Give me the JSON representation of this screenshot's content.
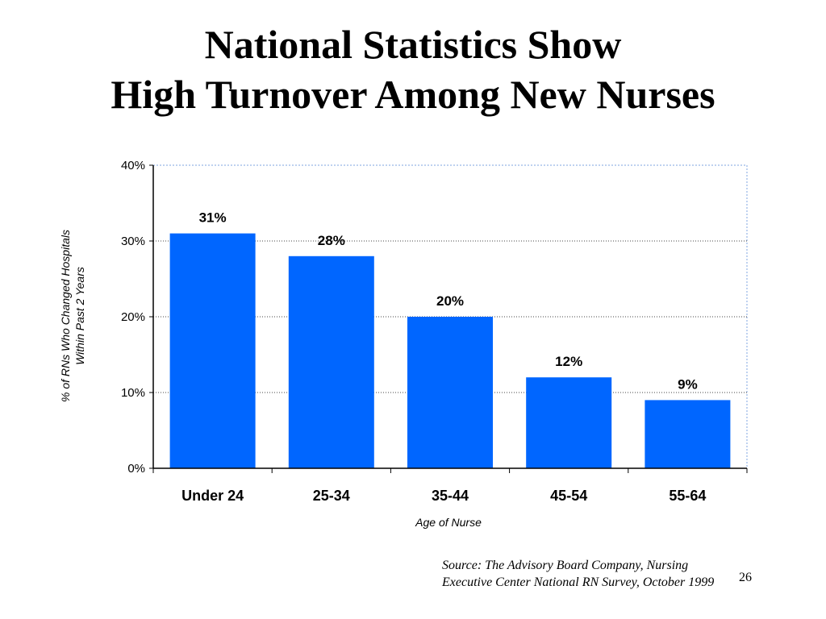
{
  "title": {
    "line1": "National Statistics Show",
    "line2": "High Turnover Among New Nurses"
  },
  "chart_data": {
    "type": "bar",
    "categories": [
      "Under 24",
      "25-34",
      "35-44",
      "45-54",
      "55-64"
    ],
    "values": [
      31,
      28,
      20,
      12,
      9
    ],
    "data_labels": [
      "31%",
      "28%",
      "20%",
      "12%",
      "9%"
    ],
    "ylim": [
      0,
      40
    ],
    "yticks": [
      0,
      10,
      20,
      30,
      40
    ],
    "ytick_labels": [
      "0%",
      "10%",
      "20%",
      "30%",
      "40%"
    ],
    "ylabel_line1": "% of RNs Who Changed Hospitals",
    "ylabel_line2": "Within Past 2 Years",
    "xlabel": "Age of Nurse",
    "grid": true,
    "bar_color": "#0066FF"
  },
  "source": {
    "line1": "Source: The Advisory Board Company, Nursing",
    "line2": "Executive Center National RN Survey, October 1999"
  },
  "page_number": "26"
}
